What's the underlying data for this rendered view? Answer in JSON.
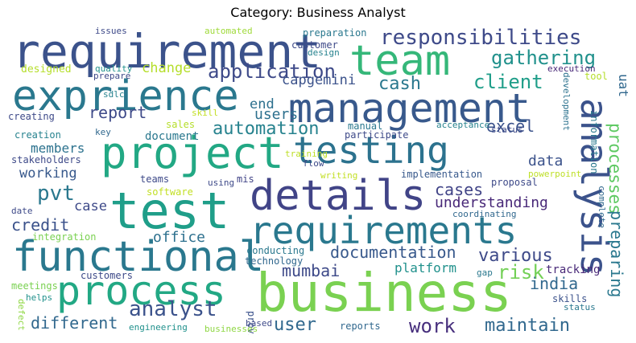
{
  "title": "Category: Business Analyst",
  "words": [
    {
      "text": "requirement",
      "color": "#3b528b"
    },
    {
      "text": "team",
      "color": "#35b779"
    },
    {
      "text": "exprience",
      "color": "#2a788e"
    },
    {
      "text": "management",
      "color": "#38598c"
    },
    {
      "text": "responsibilities",
      "color": "#3e4a89"
    },
    {
      "text": "project",
      "color": "#22a884"
    },
    {
      "text": "testing",
      "color": "#2c728e"
    },
    {
      "text": "analysis",
      "color": "#3b528b"
    },
    {
      "text": "details",
      "color": "#414487"
    },
    {
      "text": "test",
      "color": "#1f9e89"
    },
    {
      "text": "requirements",
      "color": "#2a788e"
    },
    {
      "text": "functional",
      "color": "#2a788e"
    },
    {
      "text": "process",
      "color": "#22a884"
    },
    {
      "text": "business",
      "color": "#7ad151"
    },
    {
      "text": "application",
      "color": "#3e4a89"
    },
    {
      "text": "gathering",
      "color": "#21918c"
    },
    {
      "text": "client",
      "color": "#1f9e89"
    },
    {
      "text": "cash",
      "color": "#2a788e"
    },
    {
      "text": "uat",
      "color": "#31688e"
    },
    {
      "text": "change",
      "color": "#b5de2b"
    },
    {
      "text": "capgemini",
      "color": "#3b528b"
    },
    {
      "text": "report",
      "color": "#3e4a89"
    },
    {
      "text": "end",
      "color": "#2d708e"
    },
    {
      "text": "users",
      "color": "#2d708e"
    },
    {
      "text": "excel",
      "color": "#3b528b"
    },
    {
      "text": "automation",
      "color": "#26828e"
    },
    {
      "text": "members",
      "color": "#2c728e"
    },
    {
      "text": "working",
      "color": "#38598c"
    },
    {
      "text": "pvt",
      "color": "#2a788e"
    },
    {
      "text": "case",
      "color": "#3e4a89"
    },
    {
      "text": "cases",
      "color": "#414487"
    },
    {
      "text": "understanding",
      "color": "#482878"
    },
    {
      "text": "data",
      "color": "#3b528b"
    },
    {
      "text": "credit",
      "color": "#3b528b"
    },
    {
      "text": "office",
      "color": "#2d708e"
    },
    {
      "text": "documentation",
      "color": "#38598c"
    },
    {
      "text": "various",
      "color": "#3e4a89"
    },
    {
      "text": "risk",
      "color": "#73d056"
    },
    {
      "text": "platform",
      "color": "#21918c"
    },
    {
      "text": "mumbai",
      "color": "#3e4a89"
    },
    {
      "text": "india",
      "color": "#31688e"
    },
    {
      "text": "tracking",
      "color": "#482878"
    },
    {
      "text": "analyst",
      "color": "#3b528b"
    },
    {
      "text": "different",
      "color": "#31688e"
    },
    {
      "text": "user",
      "color": "#31688e"
    },
    {
      "text": "work",
      "color": "#472f7d"
    },
    {
      "text": "maintain",
      "color": "#31688e"
    },
    {
      "text": "processes",
      "color": "#5ec962"
    },
    {
      "text": "preparing",
      "color": "#2a788e"
    },
    {
      "text": "document",
      "color": "#2a788e"
    },
    {
      "text": "integration",
      "color": "#7ad151"
    },
    {
      "text": "customers",
      "color": "#3e4a89"
    },
    {
      "text": "conducting",
      "color": "#2a788e"
    },
    {
      "text": "technology",
      "color": "#31688e"
    },
    {
      "text": "provide",
      "color": "#3b528b"
    },
    {
      "text": "meetings",
      "color": "#7ad151"
    },
    {
      "text": "helps",
      "color": "#21918c"
    },
    {
      "text": "defect",
      "color": "#8fd744"
    },
    {
      "text": "engineering",
      "color": "#21918c"
    },
    {
      "text": "businesses",
      "color": "#8fd744"
    },
    {
      "text": "based",
      "color": "#3e4a89"
    },
    {
      "text": "reports",
      "color": "#31688e"
    },
    {
      "text": "skills",
      "color": "#3b528b"
    },
    {
      "text": "status",
      "color": "#2a788e"
    },
    {
      "text": "gap",
      "color": "#2a788e"
    },
    {
      "text": "issues",
      "color": "#3e4a89"
    },
    {
      "text": "automated",
      "color": "#9fda3a"
    },
    {
      "text": "preparation",
      "color": "#2a788e"
    },
    {
      "text": "customer",
      "color": "#3e4a89"
    },
    {
      "text": "design",
      "color": "#26828e"
    },
    {
      "text": "quality",
      "color": "#21918c"
    },
    {
      "text": "prepare",
      "color": "#3e4a89"
    },
    {
      "text": "designed",
      "color": "#b5de2b"
    },
    {
      "text": "sdlc",
      "color": "#26828e"
    },
    {
      "text": "execution",
      "color": "#482878"
    },
    {
      "text": "tool",
      "color": "#b5de2b"
    },
    {
      "text": "skill",
      "color": "#c2df23"
    },
    {
      "text": "sales",
      "color": "#b5de2b"
    },
    {
      "text": "creating",
      "color": "#3e4a89"
    },
    {
      "text": "creation",
      "color": "#26828e"
    },
    {
      "text": "key",
      "color": "#31688e"
    },
    {
      "text": "manual",
      "color": "#2a788e"
    },
    {
      "text": "participate",
      "color": "#3e4a89"
    },
    {
      "text": "acceptance",
      "color": "#26828e"
    },
    {
      "text": "status",
      "color": "#3e4a89"
    },
    {
      "text": "development",
      "color": "#2c728e"
    },
    {
      "text": "information",
      "color": "#2a788e"
    },
    {
      "text": "stakeholders",
      "color": "#3e4a89"
    },
    {
      "text": "training",
      "color": "#bddf26"
    },
    {
      "text": "flow",
      "color": "#3e4a89"
    },
    {
      "text": "writing",
      "color": "#c2df23"
    },
    {
      "text": "implementation",
      "color": "#38598c"
    },
    {
      "text": "powerpoint",
      "color": "#bddf26"
    },
    {
      "text": "teams",
      "color": "#3e4a89"
    },
    {
      "text": "mis",
      "color": "#414487"
    },
    {
      "text": "using",
      "color": "#3e4a89"
    },
    {
      "text": "software",
      "color": "#c2df23"
    },
    {
      "text": "proposal",
      "color": "#3e4a89"
    },
    {
      "text": "complete",
      "color": "#31688e"
    },
    {
      "text": "date",
      "color": "#3e4a89"
    },
    {
      "text": "coordinating",
      "color": "#31688e"
    }
  ]
}
